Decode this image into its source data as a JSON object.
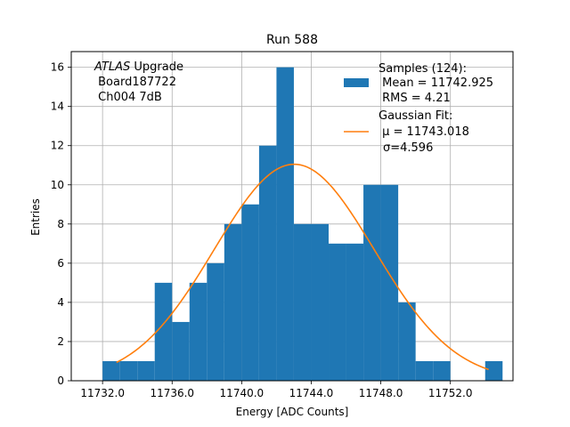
{
  "chart_data": {
    "type": "bar",
    "title": "Run 588",
    "xlabel": "Energy [ADC Counts]",
    "ylabel": "Entries",
    "xlim": [
      11730.2,
      11755.6
    ],
    "ylim": [
      0,
      16.8
    ],
    "x_ticks": [
      11732.0,
      11736.0,
      11740.0,
      11744.0,
      11748.0,
      11752.0
    ],
    "x_tick_labels": [
      "11732.0",
      "11736.0",
      "11740.0",
      "11744.0",
      "11748.0",
      "11752.0"
    ],
    "y_ticks": [
      0,
      2,
      4,
      6,
      8,
      10,
      12,
      14,
      16
    ],
    "y_tick_labels": [
      "0",
      "2",
      "4",
      "6",
      "8",
      "10",
      "12",
      "14",
      "16"
    ],
    "grid": true,
    "annotation": {
      "atlas": "ATLAS",
      "upgrade": " Upgrade",
      "board": " Board187722",
      "channel": " Ch004 7dB"
    },
    "histogram": {
      "name": "Samples (124):",
      "color": "#1f77b4",
      "bin_edges": [
        11732.0,
        11733.0,
        11734.0,
        11735.0,
        11736.0,
        11737.0,
        11738.0,
        11739.0,
        11740.0,
        11741.0,
        11742.0,
        11743.0,
        11744.0,
        11745.0,
        11746.0,
        11747.0,
        11748.0,
        11749.0,
        11750.0,
        11751.0,
        11752.0,
        11753.0,
        11754.0,
        11755.0
      ],
      "counts": [
        1,
        1,
        1,
        5,
        3,
        5,
        6,
        8,
        9,
        12,
        16,
        8,
        8,
        7,
        7,
        10,
        10,
        4,
        1,
        1,
        0,
        0,
        1
      ]
    },
    "fit": {
      "name": "Gaussian Fit:",
      "color": "#ff7f0e",
      "mu": 11743.018,
      "sigma": 4.596,
      "amplitude": 11.05,
      "x_range": [
        11732.8,
        11754.2
      ]
    },
    "legend": {
      "position": "top-right",
      "samples_title": "Samples (124):",
      "samples_mean": " Mean = 11742.925",
      "samples_rms": " RMS = 4.21",
      "fit_title": "Gaussian Fit:",
      "fit_mu": " μ = 11743.018",
      "fit_sigma": "σ=4.596"
    }
  }
}
